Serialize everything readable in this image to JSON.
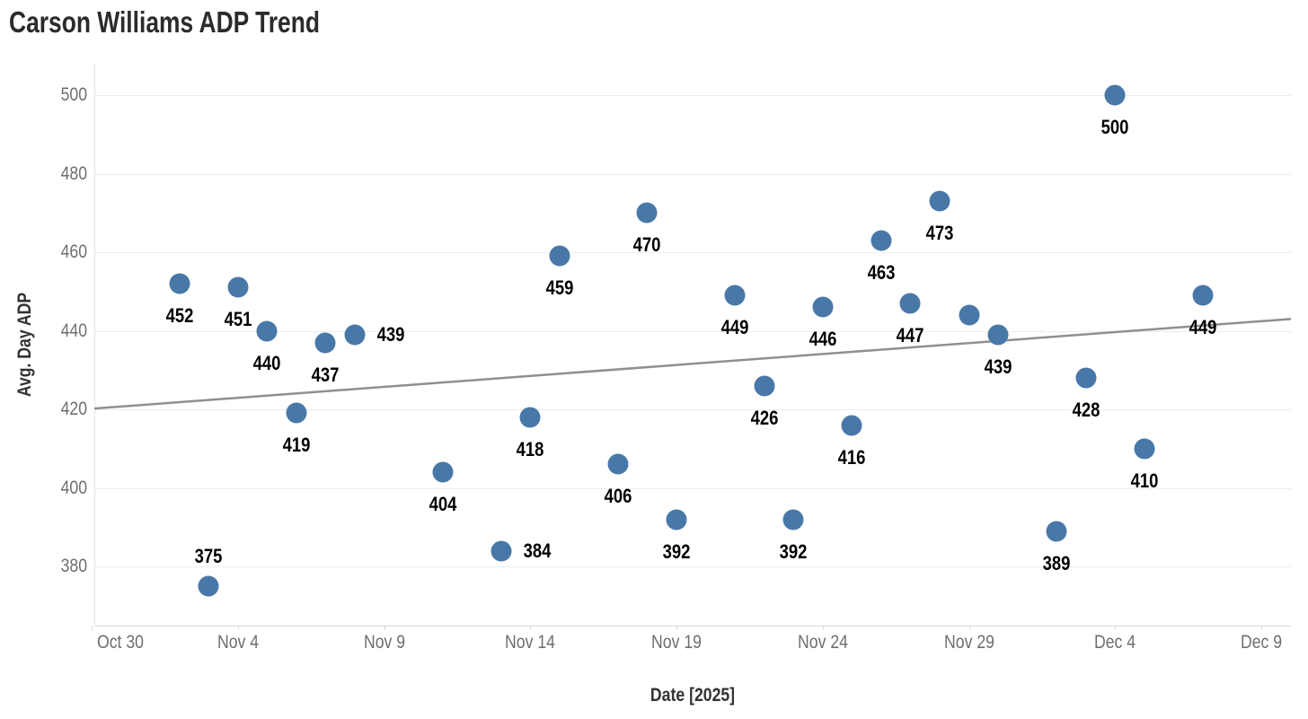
{
  "title": "Carson Williams ADP Trend",
  "colors": {
    "dot": "#4878A8",
    "trend_line": "#8F8F8F",
    "gridline": "#EDEDED",
    "axis_line": "#D9D9D9",
    "tick_text": "#6E6E6E",
    "title_text": "#2B2B2B",
    "label_text": "#000000",
    "background": "#FFFFFF"
  },
  "chart_data": {
    "type": "scatter",
    "title": "Carson Williams ADP Trend",
    "xlabel": "Date [2025]",
    "ylabel": "Avg. Day ADP",
    "grid": "horizontal",
    "legend": "none",
    "y_ticks": [
      380,
      400,
      420,
      440,
      460,
      480,
      500
    ],
    "ylim": [
      365,
      508
    ],
    "x_ticks": [
      {
        "label": "Oct 30",
        "day": 0
      },
      {
        "label": "Nov 4",
        "day": 5
      },
      {
        "label": "Nov 9",
        "day": 10
      },
      {
        "label": "Nov 14",
        "day": 15
      },
      {
        "label": "Nov 19",
        "day": 20
      },
      {
        "label": "Nov 24",
        "day": 25
      },
      {
        "label": "Nov 29",
        "day": 30
      },
      {
        "label": "Dec 4",
        "day": 35
      },
      {
        "label": "Dec 9",
        "day": 40
      }
    ],
    "xlim_days": [
      0,
      41
    ],
    "points": [
      {
        "date": "Nov 2",
        "day": 3,
        "value": 452,
        "label": "452",
        "label_pos": "below"
      },
      {
        "date": "Nov 3",
        "day": 4,
        "value": 375,
        "label": "375",
        "label_pos": "above"
      },
      {
        "date": "Nov 4",
        "day": 5,
        "value": 451,
        "label": "451",
        "label_pos": "below"
      },
      {
        "date": "Nov 5",
        "day": 6,
        "value": 440,
        "label": "440",
        "label_pos": "below"
      },
      {
        "date": "Nov 6",
        "day": 7,
        "value": 419,
        "label": "419",
        "label_pos": "below"
      },
      {
        "date": "Nov 7",
        "day": 8,
        "value": 437,
        "label": "437",
        "label_pos": "below"
      },
      {
        "date": "Nov 8",
        "day": 9,
        "value": 439,
        "label": "439",
        "label_pos": "right"
      },
      {
        "date": "Nov 11",
        "day": 12,
        "value": 404,
        "label": "404",
        "label_pos": "below"
      },
      {
        "date": "Nov 13",
        "day": 14,
        "value": 384,
        "label": "384",
        "label_pos": "right"
      },
      {
        "date": "Nov 14",
        "day": 15,
        "value": 418,
        "label": "418",
        "label_pos": "below"
      },
      {
        "date": "Nov 15",
        "day": 16,
        "value": 459,
        "label": "459",
        "label_pos": "below"
      },
      {
        "date": "Nov 17",
        "day": 18,
        "value": 406,
        "label": "406",
        "label_pos": "below"
      },
      {
        "date": "Nov 18",
        "day": 19,
        "value": 470,
        "label": "470",
        "label_pos": "below"
      },
      {
        "date": "Nov 19",
        "day": 20,
        "value": 392,
        "label": "392",
        "label_pos": "below"
      },
      {
        "date": "Nov 21",
        "day": 22,
        "value": 449,
        "label": "449",
        "label_pos": "below"
      },
      {
        "date": "Nov 22",
        "day": 23,
        "value": 426,
        "label": "426",
        "label_pos": "below"
      },
      {
        "date": "Nov 23",
        "day": 24,
        "value": 392,
        "label": "392",
        "label_pos": "below"
      },
      {
        "date": "Nov 24",
        "day": 25,
        "value": 446,
        "label": "446",
        "label_pos": "below"
      },
      {
        "date": "Nov 25",
        "day": 26,
        "value": 416,
        "label": "416",
        "label_pos": "below"
      },
      {
        "date": "Nov 26",
        "day": 27,
        "value": 463,
        "label": "463",
        "label_pos": "below"
      },
      {
        "date": "Nov 27",
        "day": 28,
        "value": 447,
        "label": "447",
        "label_pos": "below"
      },
      {
        "date": "Nov 28",
        "day": 29,
        "value": 473,
        "label": "473",
        "label_pos": "below"
      },
      {
        "date": "Nov 29",
        "day": 30,
        "value": 444,
        "label": "",
        "label_pos": "none"
      },
      {
        "date": "Nov 30",
        "day": 31,
        "value": 439,
        "label": "439",
        "label_pos": "below"
      },
      {
        "date": "Dec 2",
        "day": 33,
        "value": 389,
        "label": "389",
        "label_pos": "below"
      },
      {
        "date": "Dec 3",
        "day": 34,
        "value": 428,
        "label": "428",
        "label_pos": "below"
      },
      {
        "date": "Dec 4",
        "day": 35,
        "value": 500,
        "label": "500",
        "label_pos": "below"
      },
      {
        "date": "Dec 5",
        "day": 36,
        "value": 410,
        "label": "410",
        "label_pos": "below"
      },
      {
        "date": "Dec 7",
        "day": 38,
        "value": 449,
        "label": "449",
        "label_pos": "below"
      }
    ],
    "trend_line": {
      "start_value": 420.2,
      "end_value": 443.0
    }
  }
}
